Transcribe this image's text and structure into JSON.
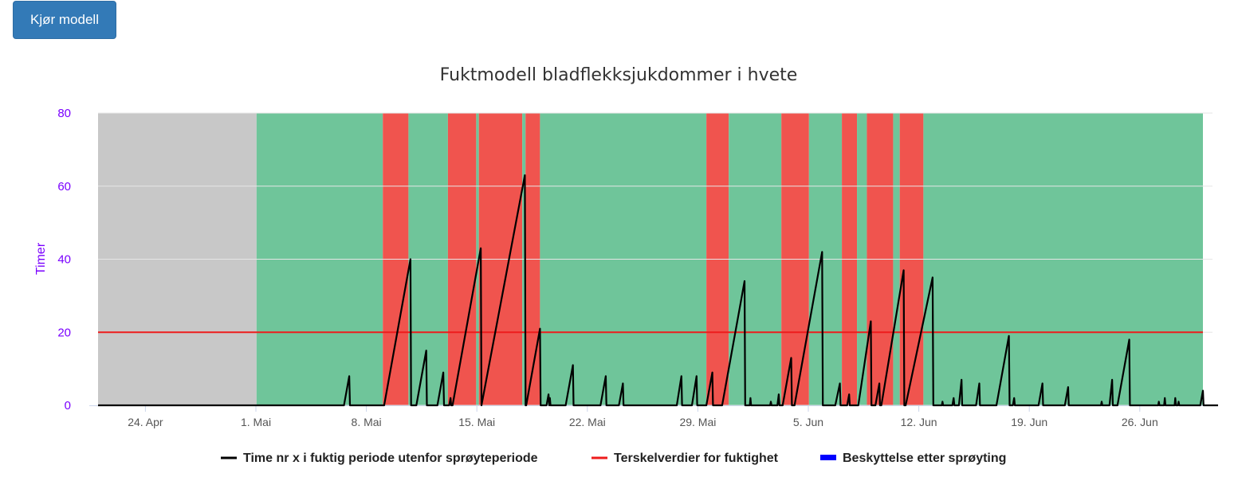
{
  "toolbar": {
    "run_label": "Kjør modell"
  },
  "colors": {
    "gray_band": "#c8c8c8",
    "green_band": "#6fc59a",
    "red_band": "#f0544e",
    "threshold": "#ee1c1c",
    "series_line": "#000000",
    "protection": "#0000ff",
    "axis_text": "#7a00ff"
  },
  "chart_data": {
    "type": "line",
    "title": "Fuktmodell bladflekksjukdommer i hvete",
    "ylabel": "Timer",
    "xlabel": "",
    "ylim": [
      0,
      80
    ],
    "yticks": [
      0,
      20,
      40,
      60,
      80
    ],
    "grid": true,
    "legend_placement": "bottom-center",
    "x_domain": [
      "2024-04-21",
      "2024-06-30"
    ],
    "xticks": [
      {
        "date": "2024-04-24",
        "label": "24. Apr"
      },
      {
        "date": "2024-05-01",
        "label": "1. Mai"
      },
      {
        "date": "2024-05-08",
        "label": "8. Mai"
      },
      {
        "date": "2024-05-15",
        "label": "15. Mai"
      },
      {
        "date": "2024-05-22",
        "label": "22. Mai"
      },
      {
        "date": "2024-05-29",
        "label": "29. Mai"
      },
      {
        "date": "2024-06-05",
        "label": "5. Jun"
      },
      {
        "date": "2024-06-12",
        "label": "12. Jun"
      },
      {
        "date": "2024-06-19",
        "label": "19. Jun"
      },
      {
        "date": "2024-06-26",
        "label": "26. Jun"
      }
    ],
    "bands": [
      {
        "from": "2024-04-21T00:00",
        "to": "2024-05-01T01:00",
        "status": "gray"
      },
      {
        "from": "2024-05-01T01:00",
        "to": "2024-05-09T01:00",
        "status": "green"
      },
      {
        "from": "2024-05-09T01:00",
        "to": "2024-05-10T16:00",
        "status": "red"
      },
      {
        "from": "2024-05-10T16:00",
        "to": "2024-05-13T04:00",
        "status": "green"
      },
      {
        "from": "2024-05-13T04:00",
        "to": "2024-05-14T23:00",
        "status": "red"
      },
      {
        "from": "2024-05-14T23:00",
        "to": "2024-05-15T03:00",
        "status": "green"
      },
      {
        "from": "2024-05-15T03:00",
        "to": "2024-05-17T21:00",
        "status": "red"
      },
      {
        "from": "2024-05-17T21:00",
        "to": "2024-05-18T02:00",
        "status": "green"
      },
      {
        "from": "2024-05-18T02:00",
        "to": "2024-05-19T00:00",
        "status": "red"
      },
      {
        "from": "2024-05-19T00:00",
        "to": "2024-05-29T13:00",
        "status": "green"
      },
      {
        "from": "2024-05-29T13:00",
        "to": "2024-05-30T23:00",
        "status": "red"
      },
      {
        "from": "2024-05-30T23:00",
        "to": "2024-06-03T07:00",
        "status": "green"
      },
      {
        "from": "2024-06-03T07:00",
        "to": "2024-06-05T01:00",
        "status": "red"
      },
      {
        "from": "2024-06-05T01:00",
        "to": "2024-06-07T03:00",
        "status": "green"
      },
      {
        "from": "2024-06-07T03:00",
        "to": "2024-06-08T02:00",
        "status": "red"
      },
      {
        "from": "2024-06-08T02:00",
        "to": "2024-06-08T17:00",
        "status": "green"
      },
      {
        "from": "2024-06-08T17:00",
        "to": "2024-06-10T09:00",
        "status": "red"
      },
      {
        "from": "2024-06-10T09:00",
        "to": "2024-06-10T19:00",
        "status": "green"
      },
      {
        "from": "2024-06-10T19:00",
        "to": "2024-06-12T07:00",
        "status": "red"
      },
      {
        "from": "2024-06-12T07:00",
        "to": "2024-06-30T00:00",
        "status": "green"
      }
    ],
    "threshold": {
      "name": "Terskelverdier for fuktighet",
      "value": 20
    },
    "series": [
      {
        "name": "Time nr x i fuktig periode utenfor sprøyteperiode",
        "points": [
          [
            "2024-04-21T00:00",
            0
          ],
          [
            "2024-05-06T14:00",
            0
          ],
          [
            "2024-05-06T22:00",
            8
          ],
          [
            "2024-05-06T23:00",
            0
          ],
          [
            "2024-05-09T03:00",
            0
          ],
          [
            "2024-05-10T19:00",
            40
          ],
          [
            "2024-05-10T20:00",
            0
          ],
          [
            "2024-05-11T04:00",
            0
          ],
          [
            "2024-05-11T19:00",
            15
          ],
          [
            "2024-05-11T20:00",
            0
          ],
          [
            "2024-05-12T12:00",
            0
          ],
          [
            "2024-05-12T21:00",
            9
          ],
          [
            "2024-05-12T22:00",
            0
          ],
          [
            "2024-05-13T06:00",
            0
          ],
          [
            "2024-05-13T08:00",
            2
          ],
          [
            "2024-05-13T09:00",
            0
          ],
          [
            "2024-05-13T11:00",
            0
          ],
          [
            "2024-05-15T06:00",
            43
          ],
          [
            "2024-05-15T07:00",
            0
          ],
          [
            "2024-05-15T07:00",
            0
          ],
          [
            "2024-05-18T01:00",
            63
          ],
          [
            "2024-05-18T02:00",
            0
          ],
          [
            "2024-05-18T03:00",
            0
          ],
          [
            "2024-05-19T00:00",
            21
          ],
          [
            "2024-05-19T01:00",
            0
          ],
          [
            "2024-05-19T10:00",
            0
          ],
          [
            "2024-05-19T13:00",
            3
          ],
          [
            "2024-05-19T14:00",
            0
          ],
          [
            "2024-05-19T15:00",
            2
          ],
          [
            "2024-05-19T16:00",
            0
          ],
          [
            "2024-05-20T15:00",
            0
          ],
          [
            "2024-05-21T02:00",
            11
          ],
          [
            "2024-05-21T03:00",
            0
          ],
          [
            "2024-05-22T20:00",
            0
          ],
          [
            "2024-05-23T04:00",
            8
          ],
          [
            "2024-05-23T05:00",
            0
          ],
          [
            "2024-05-24T00:00",
            0
          ],
          [
            "2024-05-24T06:00",
            6
          ],
          [
            "2024-05-24T07:00",
            0
          ],
          [
            "2024-05-27T16:00",
            0
          ],
          [
            "2024-05-27T23:00",
            8
          ],
          [
            "2024-05-28T00:00",
            0
          ],
          [
            "2024-05-28T15:00",
            0
          ],
          [
            "2024-05-28T22:00",
            8
          ],
          [
            "2024-05-28T23:00",
            0
          ],
          [
            "2024-05-29T13:00",
            0
          ],
          [
            "2024-05-29T22:00",
            9
          ],
          [
            "2024-05-29T23:00",
            0
          ],
          [
            "2024-05-30T13:00",
            0
          ],
          [
            "2024-05-31T23:00",
            34
          ],
          [
            "2024-06-01T00:00",
            0
          ],
          [
            "2024-06-01T07:00",
            0
          ],
          [
            "2024-06-01T08:00",
            2
          ],
          [
            "2024-06-01T09:00",
            0
          ],
          [
            "2024-06-02T14:00",
            0
          ],
          [
            "2024-06-02T15:00",
            1
          ],
          [
            "2024-06-02T16:00",
            0
          ],
          [
            "2024-06-03T01:00",
            0
          ],
          [
            "2024-06-03T03:00",
            3
          ],
          [
            "2024-06-03T04:00",
            0
          ],
          [
            "2024-06-03T09:00",
            0
          ],
          [
            "2024-06-03T22:00",
            13
          ],
          [
            "2024-06-03T23:00",
            0
          ],
          [
            "2024-06-04T03:00",
            0
          ],
          [
            "2024-06-05T21:00",
            42
          ],
          [
            "2024-06-05T22:00",
            0
          ],
          [
            "2024-06-06T17:00",
            0
          ],
          [
            "2024-06-07T00:00",
            6
          ],
          [
            "2024-06-07T01:00",
            0
          ],
          [
            "2024-06-07T11:00",
            0
          ],
          [
            "2024-06-07T14:00",
            3
          ],
          [
            "2024-06-07T15:00",
            0
          ],
          [
            "2024-06-08T04:00",
            0
          ],
          [
            "2024-06-08T23:00",
            23
          ],
          [
            "2024-06-09T00:00",
            0
          ],
          [
            "2024-06-09T06:00",
            0
          ],
          [
            "2024-06-09T12:00",
            6
          ],
          [
            "2024-06-09T13:00",
            0
          ],
          [
            "2024-06-09T15:00",
            0
          ],
          [
            "2024-06-11T01:00",
            37
          ],
          [
            "2024-06-11T02:00",
            0
          ],
          [
            "2024-06-11T04:00",
            0
          ],
          [
            "2024-06-12T21:00",
            35
          ],
          [
            "2024-06-12T22:00",
            0
          ],
          [
            "2024-06-13T11:00",
            0
          ],
          [
            "2024-06-13T12:00",
            1
          ],
          [
            "2024-06-13T13:00",
            0
          ],
          [
            "2024-06-14T03:00",
            0
          ],
          [
            "2024-06-14T05:00",
            2
          ],
          [
            "2024-06-14T06:00",
            0
          ],
          [
            "2024-06-14T13:00",
            0
          ],
          [
            "2024-06-14T17:00",
            7
          ],
          [
            "2024-06-14T18:00",
            0
          ],
          [
            "2024-06-15T15:00",
            0
          ],
          [
            "2024-06-15T20:00",
            6
          ],
          [
            "2024-06-15T21:00",
            0
          ],
          [
            "2024-06-16T22:00",
            0
          ],
          [
            "2024-06-17T17:00",
            19
          ],
          [
            "2024-06-17T18:00",
            0
          ],
          [
            "2024-06-17T23:00",
            0
          ],
          [
            "2024-06-18T01:00",
            2
          ],
          [
            "2024-06-18T02:00",
            0
          ],
          [
            "2024-06-19T14:00",
            0
          ],
          [
            "2024-06-19T20:00",
            6
          ],
          [
            "2024-06-19T21:00",
            0
          ],
          [
            "2024-06-21T06:00",
            0
          ],
          [
            "2024-06-21T11:00",
            5
          ],
          [
            "2024-06-21T12:00",
            0
          ],
          [
            "2024-06-23T13:00",
            0
          ],
          [
            "2024-06-23T14:00",
            1
          ],
          [
            "2024-06-23T15:00",
            0
          ],
          [
            "2024-06-24T02:00",
            0
          ],
          [
            "2024-06-24T06:00",
            7
          ],
          [
            "2024-06-24T07:00",
            0
          ],
          [
            "2024-06-24T14:00",
            0
          ],
          [
            "2024-06-25T08:00",
            18
          ],
          [
            "2024-06-25T09:00",
            0
          ],
          [
            "2024-06-27T04:00",
            0
          ],
          [
            "2024-06-27T05:00",
            1
          ],
          [
            "2024-06-27T06:00",
            0
          ],
          [
            "2024-06-27T13:00",
            0
          ],
          [
            "2024-06-27T14:00",
            2
          ],
          [
            "2024-06-27T15:00",
            0
          ],
          [
            "2024-06-28T05:00",
            0
          ],
          [
            "2024-06-28T06:00",
            2
          ],
          [
            "2024-06-28T07:00",
            0
          ],
          [
            "2024-06-28T10:00",
            0
          ],
          [
            "2024-06-28T11:00",
            1
          ],
          [
            "2024-06-28T12:00",
            0
          ],
          [
            "2024-06-29T20:00",
            0
          ],
          [
            "2024-06-30T00:00",
            4
          ],
          [
            "2024-06-30T01:00",
            0
          ],
          [
            "2024-06-30T23:00",
            0
          ]
        ]
      },
      {
        "name": "Beskyttelse etter sprøyting",
        "points": []
      }
    ],
    "legend": [
      {
        "label": "Time nr x i fuktig periode utenfor sprøyteperiode",
        "color": "#000000"
      },
      {
        "label": "Terskelverdier for fuktighet",
        "color": "#ee1c1c"
      },
      {
        "label": "Beskyttelse etter sprøyting",
        "color": "#0000ff"
      }
    ]
  }
}
